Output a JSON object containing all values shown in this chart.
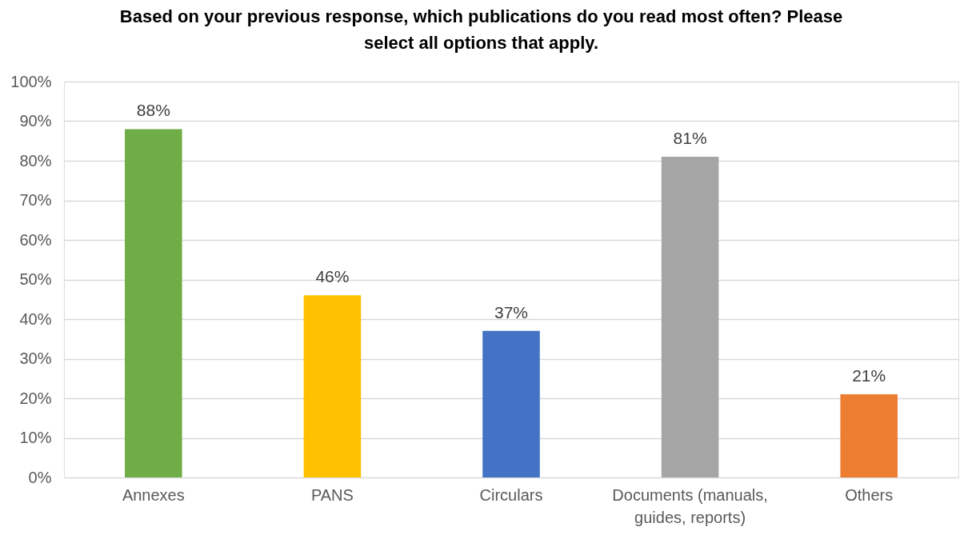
{
  "chart_data": {
    "type": "bar",
    "title": "Based on your previous response, which publications do you read most often? Please select all options that apply.",
    "categories": [
      "Annexes",
      "PANS",
      "Circulars",
      "Documents (manuals, guides, reports)",
      "Others"
    ],
    "values": [
      88,
      46,
      37,
      81,
      21
    ],
    "colors": [
      "#70ad47",
      "#ffc000",
      "#4472c4",
      "#a5a5a5",
      "#ed7d31"
    ],
    "value_labels": [
      "88%",
      "46%",
      "37%",
      "81%",
      "21%"
    ],
    "ylim": [
      0,
      100
    ],
    "yticks": [
      {
        "value": 0,
        "label": "0%"
      },
      {
        "value": 10,
        "label": "10%"
      },
      {
        "value": 20,
        "label": "20%"
      },
      {
        "value": 30,
        "label": "30%"
      },
      {
        "value": 40,
        "label": "40%"
      },
      {
        "value": 50,
        "label": "50%"
      },
      {
        "value": 60,
        "label": "60%"
      },
      {
        "value": 70,
        "label": "70%"
      },
      {
        "value": 80,
        "label": "80%"
      },
      {
        "value": 90,
        "label": "90%"
      },
      {
        "value": 100,
        "label": "100%"
      }
    ],
    "grid": "y"
  }
}
